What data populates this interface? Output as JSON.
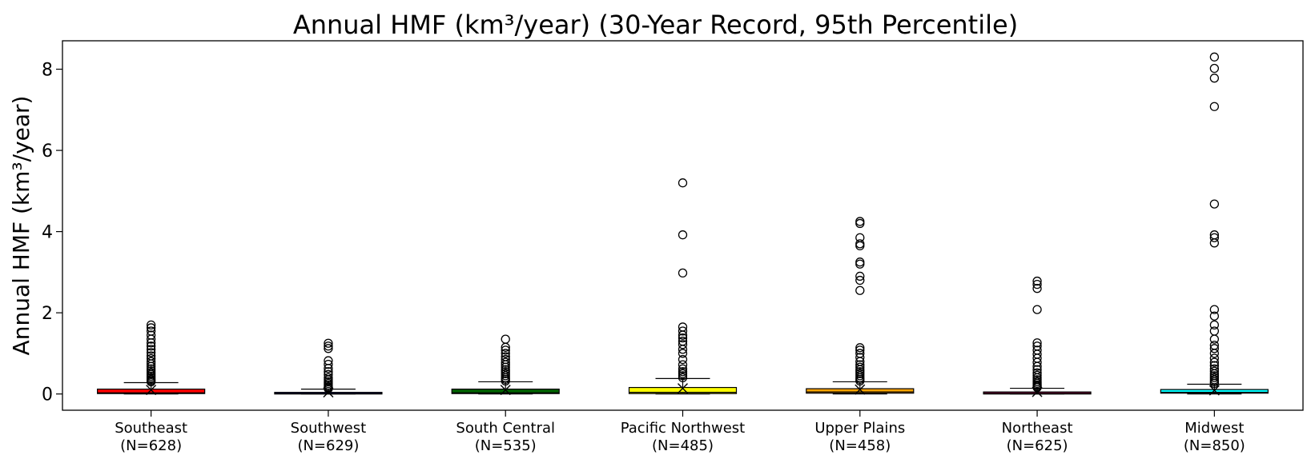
{
  "chart_data": {
    "type": "box",
    "title": "Annual HMF (km³/year) (30-Year Record, 95th Percentile)",
    "ylabel": "Annual HMF (km³/year)",
    "xlabel": "",
    "ylim": [
      -0.4,
      8.7
    ],
    "yticks": [
      0,
      2,
      4,
      6,
      8
    ],
    "grid": false,
    "legend": "none",
    "categories": [
      "Southeast\n(N=628)",
      "Southwest\n(N=629)",
      "South Central\n(N=535)",
      "Pacific Northwest\n(N=485)",
      "Upper Plains\n(N=458)",
      "Northeast\n(N=625)",
      "Midwest\n(N=850)"
    ],
    "series": [
      {
        "category": "Southeast\n(N=628)",
        "color": "#ff0000",
        "min": 0.0,
        "q1": 0.01,
        "median": 0.03,
        "q3": 0.12,
        "max": 0.28,
        "mean": 0.1,
        "outliers": [
          0.3,
          0.33,
          0.36,
          0.4,
          0.44,
          0.48,
          0.52,
          0.57,
          0.62,
          0.68,
          0.74,
          0.8,
          0.87,
          0.94,
          1.02,
          1.1,
          1.18,
          1.26,
          1.35,
          1.45,
          1.55,
          1.63,
          1.7
        ]
      },
      {
        "category": "Southwest\n(N=629)",
        "color": "#1a1a7a",
        "min": 0.0,
        "q1": 0.0,
        "median": 0.01,
        "q3": 0.04,
        "max": 0.12,
        "mean": 0.04,
        "outliers": [
          0.13,
          0.15,
          0.18,
          0.22,
          0.26,
          0.3,
          0.35,
          0.4,
          0.48,
          0.55,
          0.63,
          0.73,
          0.82,
          1.12,
          1.18,
          1.25
        ]
      },
      {
        "category": "South Central\n(N=535)",
        "color": "#006400",
        "min": 0.0,
        "q1": 0.01,
        "median": 0.03,
        "q3": 0.12,
        "max": 0.3,
        "mean": 0.1,
        "outliers": [
          0.32,
          0.36,
          0.4,
          0.45,
          0.5,
          0.55,
          0.6,
          0.66,
          0.72,
          0.78,
          0.85,
          0.92,
          1.0,
          1.08,
          1.15,
          1.35
        ]
      },
      {
        "category": "Pacific Northwest\n(N=485)",
        "color": "#ffff00",
        "min": 0.0,
        "q1": 0.01,
        "median": 0.04,
        "q3": 0.16,
        "max": 0.38,
        "mean": 0.14,
        "outliers": [
          0.4,
          0.45,
          0.5,
          0.55,
          0.62,
          0.72,
          0.85,
          1.0,
          1.1,
          1.22,
          1.3,
          1.38,
          1.45,
          1.55,
          1.65,
          2.98,
          3.92,
          5.2
        ]
      },
      {
        "category": "Upper Plains\n(N=458)",
        "color": "#ffa500",
        "min": 0.0,
        "q1": 0.02,
        "median": 0.05,
        "q3": 0.13,
        "max": 0.3,
        "mean": 0.11,
        "outliers": [
          0.32,
          0.36,
          0.4,
          0.45,
          0.5,
          0.55,
          0.6,
          0.66,
          0.72,
          0.8,
          0.9,
          1.0,
          1.08,
          1.14,
          2.55,
          2.8,
          2.9,
          3.2,
          3.25,
          3.65,
          3.7,
          3.85,
          4.2,
          4.25
        ]
      },
      {
        "category": "Northeast\n(N=625)",
        "color": "#7a0a3a",
        "min": 0.0,
        "q1": 0.0,
        "median": 0.01,
        "q3": 0.05,
        "max": 0.14,
        "mean": 0.05,
        "outliers": [
          0.16,
          0.19,
          0.22,
          0.26,
          0.3,
          0.35,
          0.4,
          0.46,
          0.52,
          0.6,
          0.68,
          0.78,
          0.88,
          0.98,
          1.08,
          1.18,
          1.26,
          2.08,
          2.6,
          2.7,
          2.78
        ]
      },
      {
        "category": "Midwest\n(N=850)",
        "color": "#00ffff",
        "min": 0.0,
        "q1": 0.02,
        "median": 0.04,
        "q3": 0.11,
        "max": 0.24,
        "mean": 0.09,
        "outliers": [
          0.26,
          0.3,
          0.35,
          0.4,
          0.45,
          0.5,
          0.56,
          0.62,
          0.7,
          0.78,
          0.88,
          1.0,
          1.12,
          1.2,
          1.35,
          1.55,
          1.7,
          1.92,
          2.08,
          3.72,
          3.85,
          3.92,
          4.68,
          7.08,
          7.78,
          8.02,
          8.3
        ]
      }
    ]
  }
}
